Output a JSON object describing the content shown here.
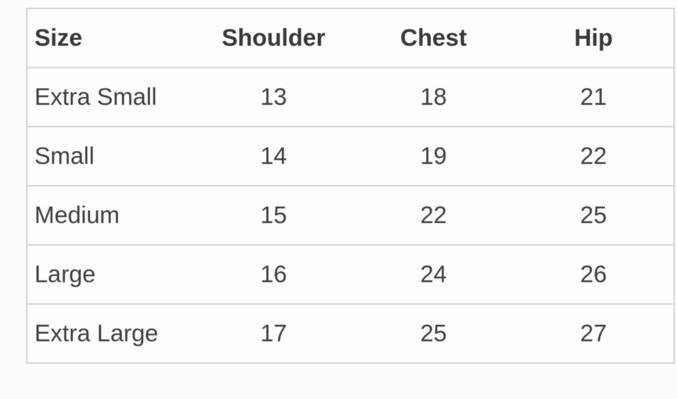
{
  "chart_data": {
    "type": "table",
    "title": "",
    "columns": [
      "Size",
      "Shoulder",
      "Chest",
      "Hip"
    ],
    "rows": [
      [
        "Extra Small",
        "13",
        "18",
        "21"
      ],
      [
        "Small",
        "14",
        "19",
        "22"
      ],
      [
        "Medium",
        "15",
        "22",
        "25"
      ],
      [
        "Large",
        "16",
        "24",
        "26"
      ],
      [
        "Extra Large",
        "17",
        "25",
        "27"
      ]
    ]
  },
  "colors": {
    "border": "#d2d2d2",
    "text": "#3e3e3e",
    "header_text": "#383838",
    "cell_background": "#fdfdfd",
    "page_background": "#fcfcfc"
  }
}
